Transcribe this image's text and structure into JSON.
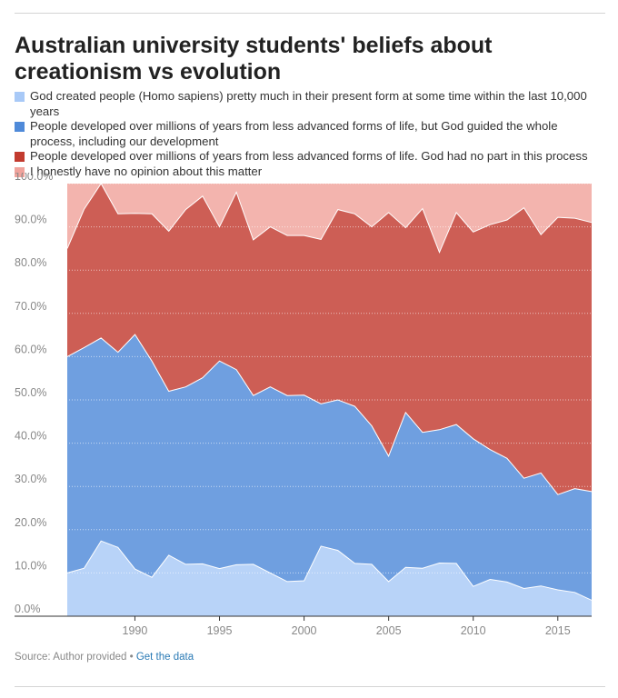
{
  "title": "Australian university students' beliefs about creationism vs evolution",
  "legend": [
    {
      "label": "God created people (Homo sapiens) pretty much in their present form at some time within the last 10,000 years",
      "color": "#a8c9f7"
    },
    {
      "label": "People developed over millions of years from less advanced forms of life, but God guided the whole process, including our development",
      "color": "#4f8ad9"
    },
    {
      "label": "People developed over millions of years from less advanced forms of life. God had no part in this process",
      "color": "#c23b2f"
    },
    {
      "label": "I honestly have no opinion about this matter",
      "color": "#f0a39c"
    }
  ],
  "source": {
    "prefix": "Source: Author provided",
    "separator": "•",
    "link": "Get the data"
  },
  "chart_data": {
    "type": "area",
    "stacked": true,
    "percent": true,
    "x": [
      1986,
      1987,
      1988,
      1989,
      1990,
      1991,
      1992,
      1993,
      1994,
      1995,
      1996,
      1997,
      1998,
      1999,
      2000,
      2001,
      2002,
      2003,
      2004,
      2005,
      2006,
      2007,
      2008,
      2009,
      2010,
      2011,
      2012,
      2013,
      2014,
      2015,
      2016,
      2017
    ],
    "series": [
      {
        "name": "God created people (Homo sapiens) pretty much in their present form at some time within the last 10,000 years",
        "color": "#a8c9f7",
        "values": [
          10.0,
          11.1,
          17.4,
          15.9,
          10.9,
          9.0,
          14.1,
          12.0,
          12.1,
          11.0,
          11.9,
          12.0,
          10.0,
          8.0,
          8.2,
          16.2,
          15.2,
          12.2,
          12.0,
          8.0,
          11.3,
          11.1,
          12.3,
          12.2,
          6.9,
          8.5,
          7.9,
          6.4,
          7.0,
          6.1,
          5.5,
          3.7
        ]
      },
      {
        "name": "People developed over millions of years from less advanced forms of life, but God guided the whole process, including our development",
        "color": "#4f8ad9",
        "values": [
          50.0,
          51.0,
          46.9,
          45.1,
          54.2,
          50.0,
          37.9,
          41.0,
          43.0,
          48.0,
          45.1,
          39.0,
          43.0,
          43.0,
          42.9,
          32.9,
          34.8,
          36.3,
          32.0,
          29.0,
          35.8,
          31.4,
          30.8,
          32.1,
          34.1,
          30.0,
          28.6,
          25.5,
          26.1,
          22.0,
          24.0,
          25.1
        ]
      },
      {
        "name": "People developed over millions of years from less advanced forms of life. God had no part in this process",
        "color": "#c23b2f",
        "values": [
          25.0,
          32.0,
          35.7,
          32.0,
          28.0,
          34.0,
          37.0,
          41.0,
          42.0,
          31.0,
          41.0,
          36.0,
          37.0,
          37.0,
          36.9,
          38.0,
          44.0,
          44.5,
          46.0,
          56.3,
          42.7,
          51.7,
          41.0,
          49.0,
          47.8,
          52.0,
          55.1,
          62.5,
          55.1,
          64.1,
          62.5,
          62.2
        ]
      },
      {
        "name": "I honestly have no opinion about this matter",
        "color": "#f0a39c",
        "values": [
          15.0,
          5.9,
          0.0,
          7.0,
          6.9,
          7.0,
          11.0,
          6.0,
          2.9,
          10.0,
          2.0,
          13.0,
          10.0,
          12.0,
          12.0,
          12.9,
          6.0,
          7.0,
          10.0,
          6.7,
          10.2,
          5.8,
          15.9,
          6.7,
          11.2,
          9.5,
          8.4,
          5.6,
          11.8,
          7.8,
          8.0,
          9.0
        ]
      }
    ],
    "y_ticks": [
      "0.0%",
      "10.0%",
      "20.0%",
      "30.0%",
      "40.0%",
      "50.0%",
      "60.0%",
      "70.0%",
      "80.0%",
      "90.0%",
      "100.0%"
    ],
    "x_ticks": [
      "1990",
      "1995",
      "2000",
      "2005",
      "2010",
      "2015"
    ],
    "ylim": [
      0,
      100
    ],
    "xlim": [
      1986,
      2017
    ]
  }
}
